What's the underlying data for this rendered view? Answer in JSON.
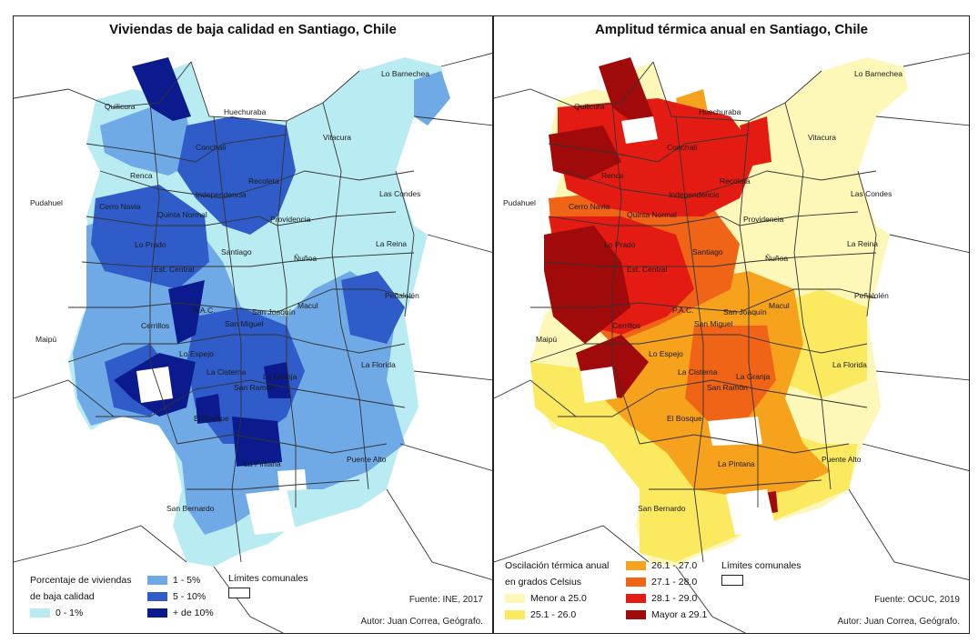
{
  "left_map": {
    "title": "Viviendas de baja calidad en Santiago, Chile",
    "legend_title_1": "Porcentaje de viviendas",
    "legend_title_2": "de baja calidad",
    "classes": [
      {
        "label": "0 - 1%",
        "color": "#b9ecf2"
      },
      {
        "label": "1 - 5%",
        "color": "#6fa9e6"
      },
      {
        "label": "5 - 10%",
        "color": "#2f5cc8"
      },
      {
        "label": "+ de 10%",
        "color": "#0b1a8c"
      }
    ],
    "boundary_label": "Límites comunales",
    "source": "Fuente: INE, 2017",
    "author": "Autor: Juan Correa, Geógrafo."
  },
  "right_map": {
    "title": "Amplitud térmica anual en Santiago, Chile",
    "legend_title_1": "Oscilación térmica anual",
    "legend_title_2": "en grados Celsius",
    "classes": [
      {
        "label": "Menor a 25.0",
        "color": "#fdf7b8"
      },
      {
        "label": "25.1 - 26.0",
        "color": "#fbe960"
      },
      {
        "label": "26.1 - 27.0",
        "color": "#f7a21c"
      },
      {
        "label": "27.1 - 28.0",
        "color": "#ef6417"
      },
      {
        "label": "28.1 - 29.0",
        "color": "#e41b12"
      },
      {
        "label": "Mayor a 29.1",
        "color": "#a10a0a"
      }
    ],
    "boundary_label": "Límites comunales",
    "source": "Fuente: OCUC, 2019",
    "author": "Autor: Juan Correa, Geógrafo."
  },
  "comunas": {
    "lo_barnechea": "Lo Barnechea",
    "quilicura": "Quilicura",
    "huechuraba": "Huechuraba",
    "conchali": "Conchalí",
    "vitacura": "Vitacura",
    "renca": "Renca",
    "recoleta": "Recoleta",
    "independencia": "Independencia",
    "las_condes": "Las Condes",
    "pudahuel": "Pudahuel",
    "cerro_navia": "Cerro Navia",
    "quinta_normal": "Quinta Normal",
    "providencia": "Providencia",
    "lo_prado": "Lo Prado",
    "santiago": "Santiago",
    "la_reina": "La Reina",
    "nunoa": "Ñuñoa",
    "est_central": "Est. Central",
    "penalolen": "Peñalolén",
    "macul": "Macul",
    "pac": "P.A.C.",
    "san_joaquin": "San Joaquín",
    "cerrillos": "Cerrillos",
    "san_miguel": "San Miguel",
    "maipu": "Maipú",
    "lo_espejo": "Lo Espejo",
    "la_florida": "La Florida",
    "la_cisterna": "La Cisterna",
    "la_granja": "La Granja",
    "san_ramon": "San Ramón",
    "el_bosque": "El Bosque",
    "puente_alto": "Puente Alto",
    "la_pintana": "La Pintana",
    "san_bernardo": "San Bernardo"
  }
}
